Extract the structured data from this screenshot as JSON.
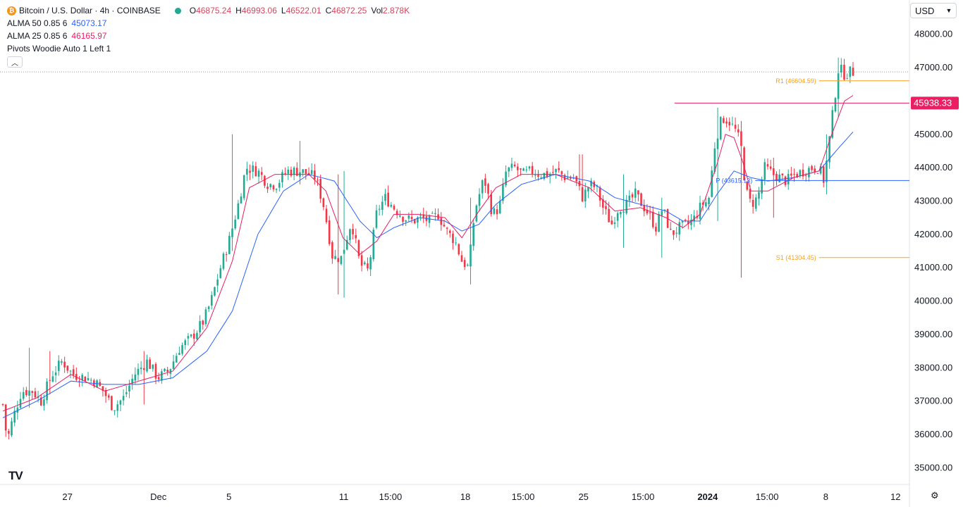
{
  "legend": {
    "symbol": "Bitcoin / U.S. Dollar · 4h · COINBASE",
    "ohlc": [
      {
        "label": "O",
        "value": "46875.24"
      },
      {
        "label": "H",
        "value": "46993.06"
      },
      {
        "label": "L",
        "value": "46522.01"
      },
      {
        "label": "C",
        "value": "46872.25"
      },
      {
        "label": "Vol",
        "value": "2.878K"
      }
    ],
    "indicators": [
      {
        "name": "ALMA 50 0.85 6",
        "value": "45073.17",
        "color": "#2962ff"
      },
      {
        "name": "ALMA 25 0.85 6",
        "value": "46165.97",
        "color": "#e91e63"
      },
      {
        "name": "Pivots Woodie Auto 1 Left 1",
        "value": ""
      }
    ]
  },
  "currency": "USD",
  "colors": {
    "up": "#22ab94",
    "down": "#f23645",
    "alma50": "#2962ff",
    "alma25": "#e91e63",
    "pivot_r": "#f7a21b",
    "pivot_p": "#2962ff",
    "hline": "#e91e63"
  },
  "chart_data": {
    "type": "candlestick",
    "ylim": [
      34500,
      48500
    ],
    "y_ticks": [
      "48000.00",
      "47000.00",
      "46000.00",
      "45000.00",
      "44000.00",
      "43000.00",
      "42000.00",
      "41000.00",
      "40000.00",
      "39000.00",
      "38000.00",
      "37000.00",
      "36000.00",
      "35000.00"
    ],
    "x_ticks": [
      {
        "label": "27",
        "x": 0.076
      },
      {
        "label": "Dec",
        "x": 0.183
      },
      {
        "label": "5",
        "x": 0.266
      },
      {
        "label": "11",
        "x": 0.401
      },
      {
        "label": "15:00",
        "x": 0.456
      },
      {
        "label": "18",
        "x": 0.544
      },
      {
        "label": "15:00",
        "x": 0.612
      },
      {
        "label": "25",
        "x": 0.683
      },
      {
        "label": "15:00",
        "x": 0.753
      },
      {
        "label": "2024",
        "x": 0.829,
        "bold": true
      },
      {
        "label": "15:00",
        "x": 0.899
      },
      {
        "label": "8",
        "x": 0.968
      },
      {
        "label": "12",
        "x": 1.05
      }
    ],
    "close_path": [
      [
        0.0,
        36900
      ],
      [
        0.005,
        35800
      ],
      [
        0.012,
        36500
      ],
      [
        0.022,
        37300
      ],
      [
        0.035,
        37300
      ],
      [
        0.045,
        37000
      ],
      [
        0.058,
        37800
      ],
      [
        0.07,
        38200
      ],
      [
        0.082,
        37800
      ],
      [
        0.098,
        37700
      ],
      [
        0.108,
        37600
      ],
      [
        0.118,
        37300
      ],
      [
        0.13,
        36800
      ],
      [
        0.142,
        37100
      ],
      [
        0.155,
        37800
      ],
      [
        0.17,
        38200
      ],
      [
        0.182,
        37700
      ],
      [
        0.195,
        37900
      ],
      [
        0.208,
        38600
      ],
      [
        0.222,
        38900
      ],
      [
        0.236,
        39400
      ],
      [
        0.245,
        40000
      ],
      [
        0.256,
        41000
      ],
      [
        0.266,
        41800
      ],
      [
        0.276,
        42800
      ],
      [
        0.286,
        44000
      ],
      [
        0.3,
        43900
      ],
      [
        0.312,
        43500
      ],
      [
        0.322,
        43500
      ],
      [
        0.334,
        43900
      ],
      [
        0.35,
        43900
      ],
      [
        0.36,
        43800
      ],
      [
        0.368,
        43700
      ],
      [
        0.378,
        42800
      ],
      [
        0.388,
        41300
      ],
      [
        0.398,
        41300
      ],
      [
        0.41,
        42400
      ],
      [
        0.42,
        41100
      ],
      [
        0.43,
        40900
      ],
      [
        0.44,
        42700
      ],
      [
        0.45,
        43100
      ],
      [
        0.46,
        42800
      ],
      [
        0.472,
        42500
      ],
      [
        0.482,
        42400
      ],
      [
        0.492,
        42500
      ],
      [
        0.502,
        42400
      ],
      [
        0.512,
        42600
      ],
      [
        0.522,
        42100
      ],
      [
        0.532,
        41800
      ],
      [
        0.54,
        41200
      ],
      [
        0.548,
        41000
      ],
      [
        0.555,
        42700
      ],
      [
        0.566,
        43700
      ],
      [
        0.576,
        42600
      ],
      [
        0.584,
        42800
      ],
      [
        0.592,
        43900
      ],
      [
        0.602,
        44000
      ],
      [
        0.612,
        43800
      ],
      [
        0.622,
        43900
      ],
      [
        0.632,
        43800
      ],
      [
        0.642,
        43800
      ],
      [
        0.652,
        43900
      ],
      [
        0.662,
        43700
      ],
      [
        0.672,
        43700
      ],
      [
        0.682,
        43100
      ],
      [
        0.69,
        43500
      ],
      [
        0.698,
        43400
      ],
      [
        0.706,
        42800
      ],
      [
        0.716,
        42300
      ],
      [
        0.724,
        42800
      ],
      [
        0.734,
        42900
      ],
      [
        0.744,
        43200
      ],
      [
        0.752,
        42900
      ],
      [
        0.76,
        42600
      ],
      [
        0.768,
        42200
      ],
      [
        0.776,
        42800
      ],
      [
        0.786,
        42000
      ],
      [
        0.796,
        42200
      ],
      [
        0.806,
        42300
      ],
      [
        0.814,
        42500
      ],
      [
        0.822,
        42900
      ],
      [
        0.83,
        43000
      ],
      [
        0.838,
        44800
      ],
      [
        0.846,
        45500
      ],
      [
        0.854,
        45400
      ],
      [
        0.862,
        45100
      ],
      [
        0.868,
        44700
      ],
      [
        0.874,
        43300
      ],
      [
        0.88,
        42900
      ],
      [
        0.888,
        43100
      ],
      [
        0.896,
        44000
      ],
      [
        0.906,
        43800
      ],
      [
        0.914,
        43700
      ],
      [
        0.922,
        43600
      ],
      [
        0.932,
        43800
      ],
      [
        0.942,
        43900
      ],
      [
        0.952,
        44000
      ],
      [
        0.96,
        44000
      ],
      [
        0.966,
        43600
      ],
      [
        0.972,
        44800
      ],
      [
        0.978,
        46000
      ],
      [
        0.983,
        47000
      ],
      [
        0.99,
        46800
      ],
      [
        0.997,
        46872
      ]
    ],
    "ranges": [
      [
        0.03,
        38600,
        36800
      ],
      [
        0.055,
        38500,
        37200
      ],
      [
        0.165,
        38500,
        36900
      ],
      [
        0.27,
        45000,
        41500
      ],
      [
        0.35,
        44800,
        43500
      ],
      [
        0.395,
        43800,
        40200
      ],
      [
        0.402,
        43900,
        40100
      ],
      [
        0.55,
        43100,
        40500
      ],
      [
        0.68,
        44400,
        43400
      ],
      [
        0.73,
        43800,
        41600
      ],
      [
        0.775,
        43100,
        41300
      ],
      [
        0.84,
        45800,
        42400
      ],
      [
        0.87,
        45400,
        40700
      ],
      [
        0.905,
        44300,
        42500
      ],
      [
        0.97,
        45000,
        43200
      ],
      [
        0.982,
        47300,
        45500
      ]
    ],
    "alma25_path": [
      [
        0.0,
        36700
      ],
      [
        0.04,
        37100
      ],
      [
        0.08,
        37800
      ],
      [
        0.12,
        37300
      ],
      [
        0.16,
        37600
      ],
      [
        0.2,
        37900
      ],
      [
        0.24,
        39200
      ],
      [
        0.27,
        41200
      ],
      [
        0.29,
        43400
      ],
      [
        0.32,
        43800
      ],
      [
        0.36,
        43800
      ],
      [
        0.38,
        43300
      ],
      [
        0.4,
        41900
      ],
      [
        0.42,
        41400
      ],
      [
        0.44,
        41800
      ],
      [
        0.46,
        42600
      ],
      [
        0.49,
        42600
      ],
      [
        0.52,
        42500
      ],
      [
        0.54,
        41900
      ],
      [
        0.56,
        42700
      ],
      [
        0.58,
        43400
      ],
      [
        0.61,
        43800
      ],
      [
        0.65,
        43800
      ],
      [
        0.69,
        43400
      ],
      [
        0.72,
        42700
      ],
      [
        0.75,
        42800
      ],
      [
        0.78,
        42500
      ],
      [
        0.8,
        42200
      ],
      [
        0.82,
        42600
      ],
      [
        0.84,
        44100
      ],
      [
        0.85,
        45000
      ],
      [
        0.86,
        44900
      ],
      [
        0.87,
        44200
      ],
      [
        0.88,
        43300
      ],
      [
        0.9,
        43300
      ],
      [
        0.93,
        43700
      ],
      [
        0.96,
        43900
      ],
      [
        0.975,
        45000
      ],
      [
        0.99,
        46000
      ],
      [
        1.0,
        46166
      ]
    ],
    "alma50_path": [
      [
        0.0,
        36500
      ],
      [
        0.04,
        37000
      ],
      [
        0.08,
        37600
      ],
      [
        0.12,
        37500
      ],
      [
        0.16,
        37500
      ],
      [
        0.2,
        37700
      ],
      [
        0.24,
        38500
      ],
      [
        0.27,
        39700
      ],
      [
        0.3,
        42000
      ],
      [
        0.33,
        43300
      ],
      [
        0.36,
        43800
      ],
      [
        0.39,
        43600
      ],
      [
        0.42,
        42400
      ],
      [
        0.44,
        41900
      ],
      [
        0.46,
        42200
      ],
      [
        0.49,
        42500
      ],
      [
        0.52,
        42400
      ],
      [
        0.54,
        42100
      ],
      [
        0.56,
        42300
      ],
      [
        0.58,
        42900
      ],
      [
        0.61,
        43500
      ],
      [
        0.65,
        43800
      ],
      [
        0.69,
        43600
      ],
      [
        0.72,
        43100
      ],
      [
        0.75,
        42900
      ],
      [
        0.78,
        42700
      ],
      [
        0.8,
        42400
      ],
      [
        0.82,
        42400
      ],
      [
        0.84,
        43200
      ],
      [
        0.86,
        43900
      ],
      [
        0.88,
        43700
      ],
      [
        0.9,
        43600
      ],
      [
        0.93,
        43700
      ],
      [
        0.96,
        43900
      ],
      [
        0.98,
        44500
      ],
      [
        1.0,
        45073
      ]
    ],
    "pivots": [
      {
        "label": "R1 (46604.59)",
        "value": 46604.59,
        "x_start": 0.96,
        "color": "#f7a21b",
        "dashed": false
      },
      {
        "label": "P (43615.13)",
        "value": 43615.13,
        "x_start": 0.885,
        "color": "#2962ff",
        "dashed": false
      },
      {
        "label": "S1 (41304.45)",
        "value": 41304.45,
        "x_start": 0.96,
        "color": "#f7a21b",
        "dashed": false
      }
    ],
    "horizontal_line": {
      "value": 45938.33,
      "label": "45938.33",
      "x_start": 0.79
    },
    "last_price": 46872.25
  }
}
